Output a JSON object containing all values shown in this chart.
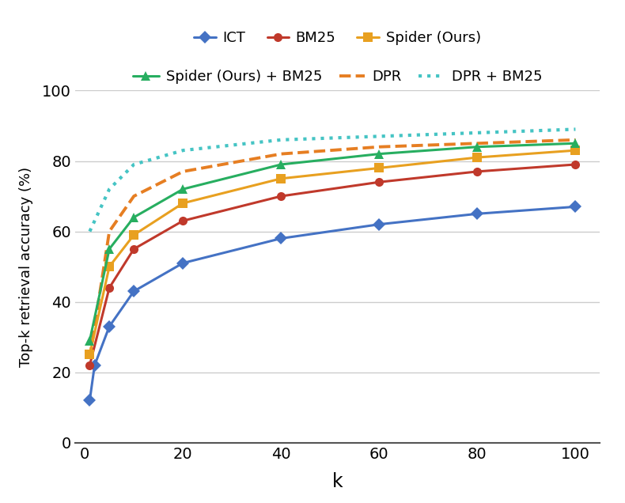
{
  "series": {
    "ICT": {
      "values": [
        12,
        22,
        33,
        43,
        51,
        58,
        62,
        65,
        67
      ],
      "k": [
        1,
        2,
        5,
        10,
        20,
        40,
        60,
        80,
        100
      ],
      "color": "#4472C4",
      "marker": "D",
      "linestyle": "-",
      "linewidth": 2.2,
      "markersize": 8,
      "label": "ICT",
      "zorder": 3
    },
    "BM25": {
      "values": [
        22,
        44,
        55,
        63,
        70,
        74,
        77,
        79
      ],
      "k": [
        1,
        5,
        10,
        20,
        40,
        60,
        80,
        100
      ],
      "color": "#C0392B",
      "marker": "o",
      "linestyle": "-",
      "linewidth": 2.2,
      "markersize": 8,
      "label": "BM25",
      "zorder": 3
    },
    "Spider": {
      "values": [
        25,
        50,
        59,
        68,
        75,
        78,
        81,
        83
      ],
      "k": [
        1,
        5,
        10,
        20,
        40,
        60,
        80,
        100
      ],
      "color": "#E8A020",
      "marker": "s",
      "linestyle": "-",
      "linewidth": 2.2,
      "markersize": 8,
      "label": "Spider (Ours)",
      "zorder": 3
    },
    "Spider_BM25": {
      "values": [
        29,
        55,
        64,
        72,
        79,
        82,
        84,
        85
      ],
      "k": [
        1,
        5,
        10,
        20,
        40,
        60,
        80,
        100
      ],
      "color": "#27AE60",
      "marker": "^",
      "linestyle": "-",
      "linewidth": 2.2,
      "markersize": 9,
      "label": "Spider (Ours) + BM25",
      "zorder": 3
    },
    "DPR": {
      "values": [
        24,
        60,
        70,
        77,
        82,
        84,
        85,
        86
      ],
      "k": [
        1,
        5,
        10,
        20,
        40,
        60,
        80,
        100
      ],
      "color": "#E67E22",
      "marker": null,
      "linestyle": "--",
      "linewidth": 2.8,
      "markersize": 0,
      "label": "DPR",
      "zorder": 2
    },
    "DPR_BM25": {
      "values": [
        60,
        72,
        79,
        83,
        86,
        87,
        88,
        89
      ],
      "k": [
        1,
        5,
        10,
        20,
        40,
        60,
        80,
        100
      ],
      "color": "#45C4C4",
      "marker": null,
      "linestyle": ":",
      "linewidth": 3.0,
      "markersize": 0,
      "label": "DPR + BM25",
      "zorder": 2
    }
  },
  "ylabel": "Top-k retrieval accuracy (%)",
  "xlabel": "k",
  "ylim": [
    0,
    100
  ],
  "xlim": [
    -2,
    105
  ],
  "yticks": [
    0,
    20,
    40,
    60,
    80,
    100
  ],
  "xticks": [
    0,
    20,
    40,
    60,
    80,
    100
  ],
  "xtick_labels": [
    "0",
    "20",
    "40",
    "60",
    "80",
    "100"
  ],
  "background_color": "#ffffff",
  "grid_color": "#cccccc",
  "legend_order": [
    "ICT",
    "BM25",
    "Spider",
    "Spider_BM25",
    "DPR",
    "DPR_BM25"
  ],
  "legend_ncol_row1": [
    "ICT",
    "BM25",
    "Spider"
  ],
  "legend_ncol_row2": [
    "Spider_BM25",
    "DPR",
    "DPR_BM25"
  ]
}
